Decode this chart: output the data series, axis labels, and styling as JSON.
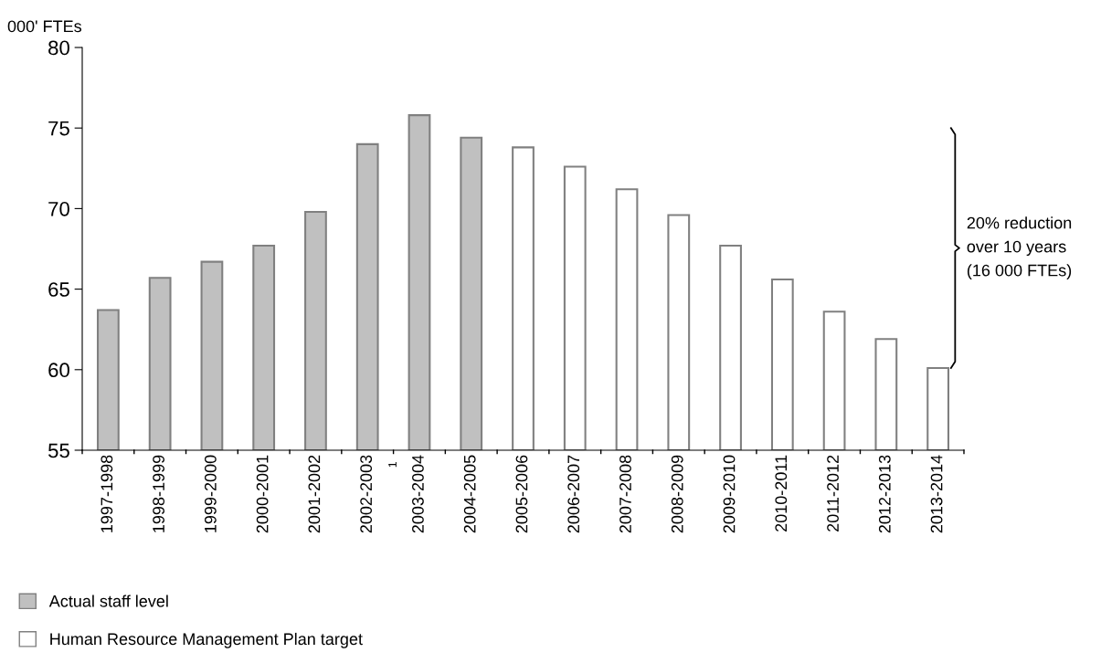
{
  "chart_data": {
    "type": "bar",
    "ylabel": "000' FTEs",
    "categories": [
      "1997-1998",
      "1998-1999",
      "1999-2000",
      "2000-2001",
      "2001-2002",
      "2002-2003",
      "2003-2004",
      "2004-2005",
      "2005-2006",
      "2006-2007",
      "2007-2008",
      "2008-2009",
      "2009-2010",
      "2010-2011",
      "2011-2012",
      "2012-2013",
      "2013-2014"
    ],
    "series": [
      {
        "name": "Actual staff level",
        "color": "#c0c0c0",
        "values": [
          63.7,
          65.7,
          66.7,
          67.7,
          69.8,
          74.0,
          75.8,
          74.4,
          null,
          null,
          null,
          null,
          null,
          null,
          null,
          null,
          null
        ]
      },
      {
        "name": "Human Resource Management Plan target",
        "color": "#ffffff",
        "values": [
          null,
          null,
          null,
          null,
          null,
          null,
          null,
          null,
          73.8,
          72.6,
          71.2,
          69.6,
          67.7,
          65.6,
          63.6,
          61.9,
          60.1
        ]
      }
    ],
    "ylim": [
      55,
      80
    ],
    "yticks": [
      55,
      60,
      65,
      70,
      75,
      80
    ],
    "grid": false,
    "legend": "bottom left",
    "annotations": [
      "1",
      "20% reduction\nover 10 years\n(16 000 FTEs)"
    ]
  }
}
